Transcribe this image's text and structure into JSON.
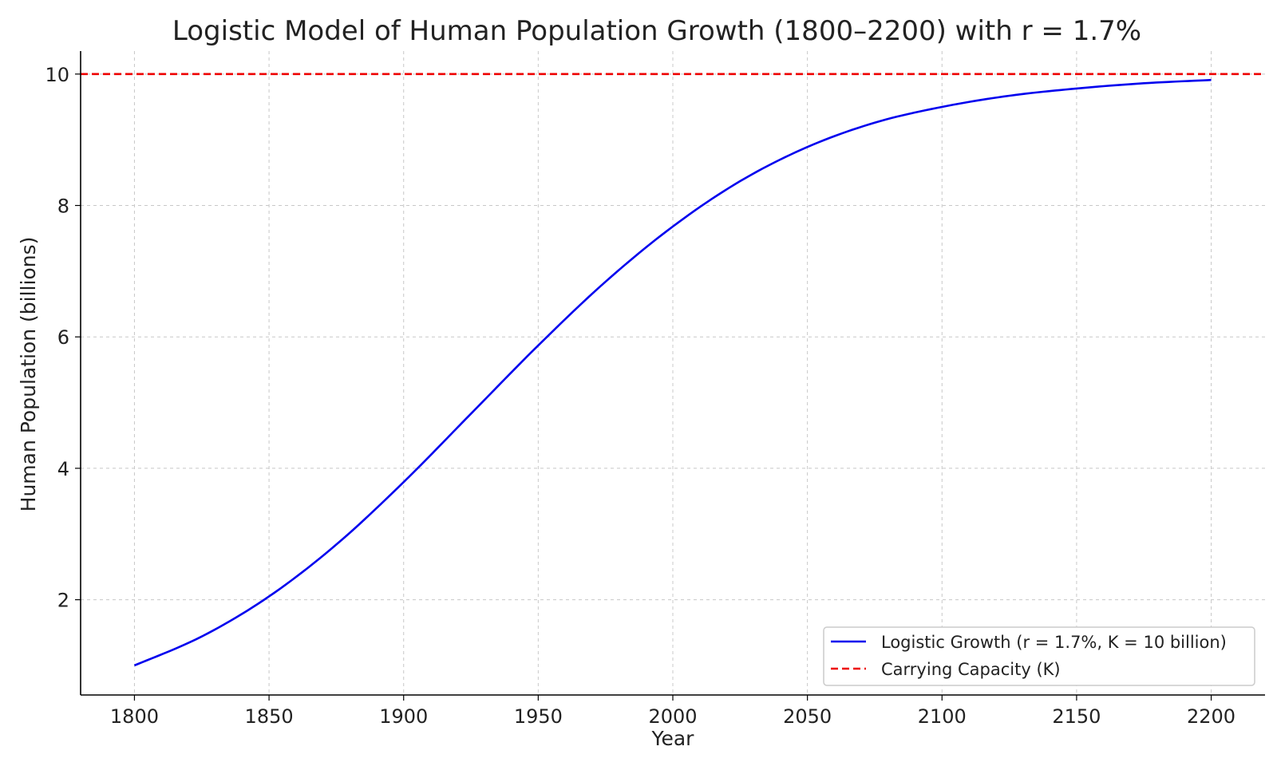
{
  "chart_data": {
    "type": "line",
    "title": "Logistic Model of Human Population Growth (1800–2200) with r = 1.7%",
    "xlabel": "Year",
    "ylabel": "Human Population (billions)",
    "xlim": [
      1780,
      2220
    ],
    "ylim": [
      0.55,
      10.35
    ],
    "xticks": [
      1800,
      1850,
      1900,
      1950,
      2000,
      2050,
      2100,
      2150,
      2200
    ],
    "yticks": [
      2,
      4,
      6,
      8,
      10
    ],
    "grid": true,
    "legend_position": "lower-right",
    "series": [
      {
        "name": "Logistic Growth (r = 1.7%, K = 10 billion)",
        "style": "solid",
        "color": "#0000ee",
        "x": [
          1800,
          1825,
          1850,
          1875,
          1900,
          1925,
          1950,
          1975,
          2000,
          2025,
          2050,
          2075,
          2100,
          2125,
          2150,
          2175,
          2200
        ],
        "y": [
          1.0,
          1.44,
          2.05,
          2.84,
          3.79,
          4.83,
          5.87,
          6.84,
          7.68,
          8.37,
          8.89,
          9.26,
          9.5,
          9.67,
          9.78,
          9.86,
          9.91
        ]
      },
      {
        "name": "Carrying Capacity (K)",
        "style": "dashed",
        "color": "#ee0000",
        "x": [
          1780,
          2220
        ],
        "y": [
          10,
          10
        ]
      }
    ]
  }
}
